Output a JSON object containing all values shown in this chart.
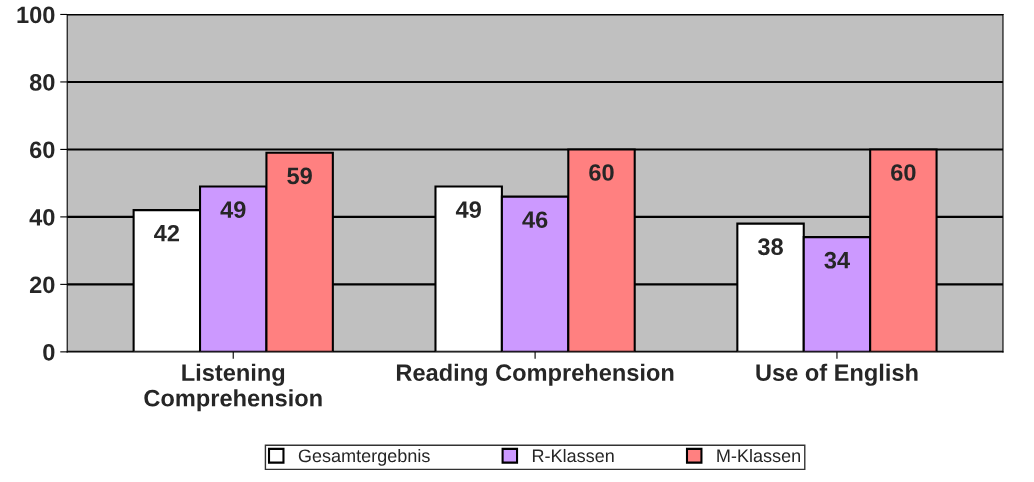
{
  "chart_data": {
    "type": "bar",
    "categories": [
      "Listening\nComprehension",
      "Reading Comprehension",
      "Use of English"
    ],
    "series": [
      {
        "name": "Gesamtergebnis",
        "color": "#ffffff",
        "values": [
          42,
          49,
          38
        ]
      },
      {
        "name": "R-Klassen",
        "color": "#cc99ff",
        "values": [
          49,
          46,
          34
        ]
      },
      {
        "name": "M-Klassen",
        "color": "#ff8080",
        "values": [
          59,
          60,
          60
        ]
      }
    ],
    "ylim": [
      0,
      100
    ],
    "yticks": [
      0,
      20,
      40,
      60,
      80,
      100
    ],
    "grid": "y",
    "legend": "bottom",
    "data_labels": true
  }
}
